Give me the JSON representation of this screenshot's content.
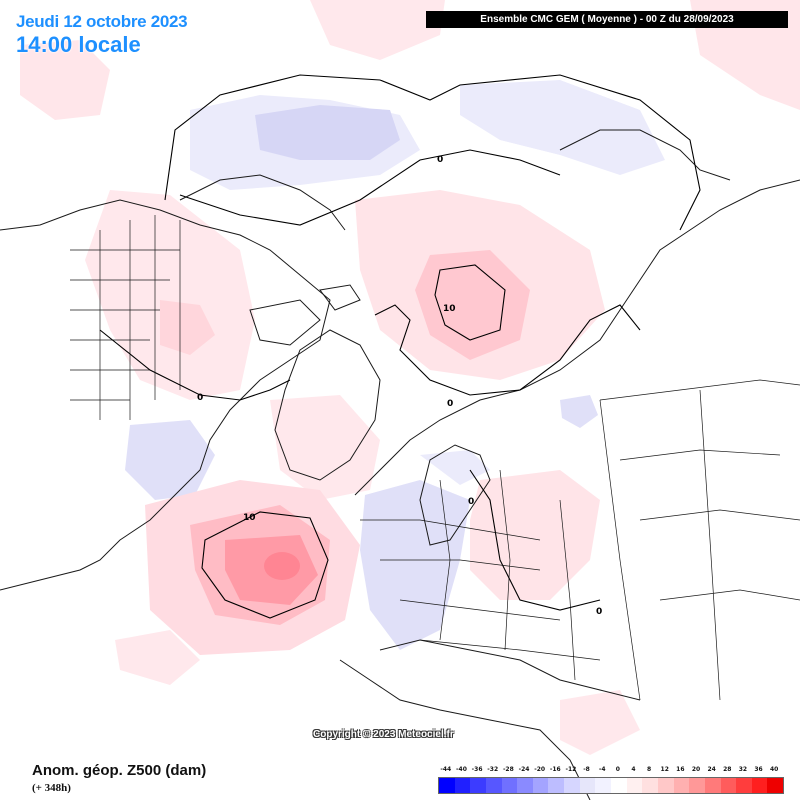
{
  "date_title": "Jeudi 12 octobre 2023",
  "time_title": "14:00 locale",
  "model_header": "Ensemble CMC GEM  ( Moyenne )  -  00 Z du 28/09/2023",
  "variable_label": "Anom. géop. Z500 (dam)",
  "lead_time": "(+ 348h)",
  "copyright": "Copyright © 2023 Meteociel.fr",
  "contour_labels": [
    "10",
    "10",
    "0",
    "0",
    "0",
    "0",
    "0"
  ],
  "color_scale": {
    "labels": [
      "-44",
      "-40",
      "-36",
      "-32",
      "-28",
      "-24",
      "-20",
      "-16",
      "-12",
      "-8",
      "-4",
      "0",
      "4",
      "8",
      "12",
      "16",
      "20",
      "24",
      "28",
      "32",
      "36",
      "40"
    ],
    "colors": [
      "#0000ff",
      "#2020ff",
      "#3c3cff",
      "#5757ff",
      "#7070ff",
      "#8a8aff",
      "#a4a4ff",
      "#bdbdff",
      "#d6d6ff",
      "#e6e6fa",
      "#f2f2ff",
      "#ffffff",
      "#fff0f0",
      "#ffe0e0",
      "#ffc8c8",
      "#ffb0b0",
      "#ff9898",
      "#ff7a7a",
      "#ff5c5c",
      "#ff3d3d",
      "#ff1f1f",
      "#ee0000"
    ]
  }
}
